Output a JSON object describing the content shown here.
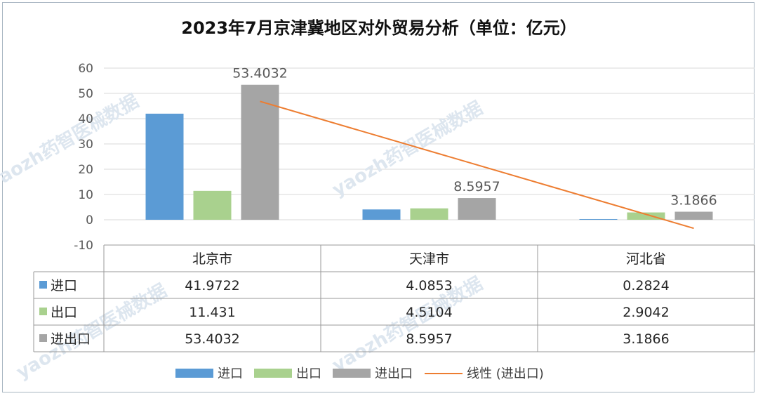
{
  "watermark": "yaozh药智医械数据",
  "chart_data": {
    "type": "bar",
    "title": "2023年7月京津冀地区对外贸易分析（单位：亿元）",
    "categories": [
      "北京市",
      "天津市",
      "河北省"
    ],
    "series": [
      {
        "name": "进口",
        "values": [
          41.9722,
          4.0853,
          0.2824
        ],
        "color": "#5b9bd5"
      },
      {
        "name": "出口",
        "values": [
          11.431,
          4.5104,
          2.9042
        ],
        "color": "#a9d18e"
      },
      {
        "name": "进出口",
        "values": [
          53.4032,
          8.5957,
          3.1866
        ],
        "color": "#a5a5a5"
      }
    ],
    "data_label_series": "进出口",
    "trendline": {
      "name": "线性 (进出口)",
      "series": "进出口",
      "type": "linear",
      "color": "#ed7d31"
    },
    "ylim": [
      -10,
      60
    ],
    "yticks": [
      60,
      50,
      40,
      30,
      20,
      10,
      0,
      -10
    ],
    "grid": true,
    "legend_position": "bottom",
    "data_table": true
  }
}
